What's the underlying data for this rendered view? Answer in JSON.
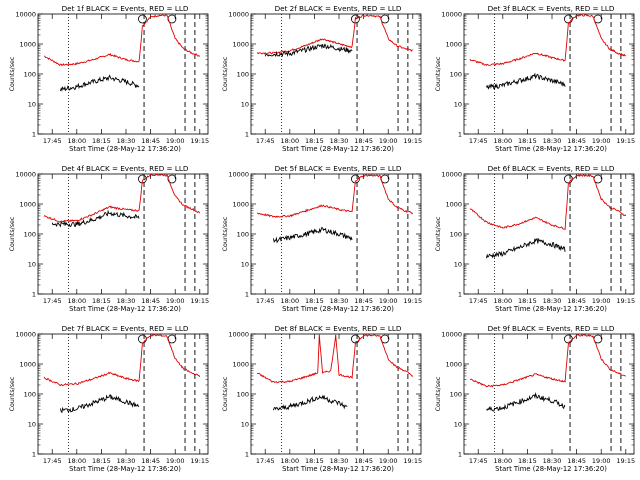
{
  "figure": {
    "xlabel": "Start Time (28-May-12 17:36:20)",
    "ylabel": "Counts/sec",
    "x_ticks": [
      "17:45",
      "18:00",
      "18:15",
      "18:30",
      "18:45",
      "19:00",
      "19:15"
    ],
    "y_ticks": [
      "1",
      "10",
      "100",
      "1000",
      "10000"
    ],
    "colors": {
      "events": "#000000",
      "lld": "#e00000"
    }
  },
  "chart_data": [
    {
      "type": "line",
      "title": "Det 1f BLACK = Events, RED = LLD",
      "xlim": [
        "17:36:20",
        "19:20"
      ],
      "ylim": [
        1,
        10000
      ],
      "y_scale": "log",
      "x_ticks": [
        "17:45",
        "18:00",
        "18:15",
        "18:30",
        "18:45",
        "19:00",
        "19:15"
      ],
      "dotted_markers": [
        "17:55"
      ],
      "dashed_markers": [
        "18:41",
        "19:06",
        "19:12"
      ],
      "circle_markers": [
        "18:40",
        "18:58"
      ],
      "series": [
        {
          "name": "LLD",
          "x": [
            "17:40",
            "17:50",
            "18:00",
            "18:10",
            "18:20",
            "18:30",
            "18:38",
            "18:40",
            "18:45",
            "18:50",
            "18:55",
            "18:58",
            "19:00",
            "19:05",
            "19:10",
            "19:15"
          ],
          "values": [
            400,
            200,
            220,
            300,
            450,
            300,
            260,
            4000,
            8000,
            9000,
            9000,
            3000,
            1500,
            700,
            500,
            400
          ]
        },
        {
          "name": "Events",
          "x": [
            "17:50",
            "18:00",
            "18:10",
            "18:20",
            "18:30",
            "18:38"
          ],
          "values": [
            30,
            38,
            55,
            75,
            55,
            40
          ]
        }
      ]
    },
    {
      "type": "line",
      "title": "Det 2f BLACK = Events, RED = LLD",
      "xlim": [
        "17:36:20",
        "19:20"
      ],
      "ylim": [
        1,
        10000
      ],
      "y_scale": "log",
      "x_ticks": [
        "17:45",
        "18:00",
        "18:15",
        "18:30",
        "18:45",
        "19:00",
        "19:15"
      ],
      "dotted_markers": [
        "17:55"
      ],
      "dashed_markers": [
        "18:41",
        "19:06",
        "19:12"
      ],
      "circle_markers": [
        "18:40",
        "18:58"
      ],
      "series": [
        {
          "name": "LLD",
          "x": [
            "17:40",
            "17:50",
            "18:00",
            "18:10",
            "18:20",
            "18:30",
            "18:38",
            "18:40",
            "18:45",
            "18:50",
            "18:55",
            "18:58",
            "19:00",
            "19:05",
            "19:10",
            "19:15"
          ],
          "values": [
            500,
            500,
            600,
            900,
            1500,
            1000,
            800,
            7000,
            9000,
            9000,
            8000,
            3000,
            1500,
            900,
            700,
            600
          ]
        },
        {
          "name": "Events",
          "x": [
            "17:45",
            "18:00",
            "18:10",
            "18:20",
            "18:30",
            "18:38"
          ],
          "values": [
            450,
            480,
            650,
            900,
            700,
            600
          ]
        }
      ]
    },
    {
      "type": "line",
      "title": "Det 3f BLACK = Events, RED = LLD",
      "xlim": [
        "17:36:20",
        "19:20"
      ],
      "ylim": [
        1,
        10000
      ],
      "y_scale": "log",
      "x_ticks": [
        "17:45",
        "18:00",
        "18:15",
        "18:30",
        "18:45",
        "19:00",
        "19:15"
      ],
      "dotted_markers": [
        "17:55"
      ],
      "dashed_markers": [
        "18:41",
        "19:06",
        "19:12"
      ],
      "circle_markers": [
        "18:40",
        "18:58"
      ],
      "series": [
        {
          "name": "LLD",
          "x": [
            "17:40",
            "17:50",
            "18:00",
            "18:10",
            "18:20",
            "18:30",
            "18:38",
            "18:40",
            "18:45",
            "18:50",
            "18:55",
            "18:58",
            "19:00",
            "19:05",
            "19:10",
            "19:15"
          ],
          "values": [
            300,
            200,
            220,
            320,
            500,
            350,
            280,
            5000,
            9000,
            9000,
            8500,
            3000,
            1500,
            700,
            500,
            400
          ]
        },
        {
          "name": "Events",
          "x": [
            "17:50",
            "18:00",
            "18:10",
            "18:20",
            "18:30",
            "18:38"
          ],
          "values": [
            35,
            42,
            60,
            85,
            60,
            45
          ]
        }
      ]
    },
    {
      "type": "line",
      "title": "Det 4f BLACK = Events, RED = LLD",
      "xlim": [
        "17:36:20",
        "19:20"
      ],
      "ylim": [
        1,
        10000
      ],
      "y_scale": "log",
      "x_ticks": [
        "17:45",
        "18:00",
        "18:15",
        "18:30",
        "18:45",
        "19:00",
        "19:15"
      ],
      "dotted_markers": [
        "17:55"
      ],
      "dashed_markers": [
        "18:41",
        "19:06",
        "19:12"
      ],
      "circle_markers": [
        "18:40",
        "18:58"
      ],
      "series": [
        {
          "name": "LLD",
          "x": [
            "17:40",
            "17:50",
            "18:00",
            "18:10",
            "18:20",
            "18:30",
            "18:38",
            "18:40",
            "18:45",
            "18:50",
            "18:55",
            "18:58",
            "19:00",
            "19:05",
            "19:10",
            "19:15"
          ],
          "values": [
            400,
            260,
            280,
            450,
            800,
            650,
            600,
            6000,
            9500,
            9500,
            9000,
            3500,
            1800,
            900,
            700,
            500
          ]
        },
        {
          "name": "Events",
          "x": [
            "17:45",
            "18:00",
            "18:10",
            "18:20",
            "18:30",
            "18:38"
          ],
          "values": [
            220,
            210,
            300,
            500,
            400,
            350
          ]
        }
      ]
    },
    {
      "type": "line",
      "title": "Det 5f BLACK = Events, RED = LLD",
      "xlim": [
        "17:36:20",
        "19:20"
      ],
      "ylim": [
        1,
        10000
      ],
      "y_scale": "log",
      "x_ticks": [
        "17:45",
        "18:00",
        "18:15",
        "18:30",
        "18:45",
        "19:00",
        "19:15"
      ],
      "dotted_markers": [
        "17:55"
      ],
      "dashed_markers": [
        "18:41",
        "19:06",
        "19:12"
      ],
      "circle_markers": [
        "18:40",
        "18:58"
      ],
      "series": [
        {
          "name": "LLD",
          "x": [
            "17:40",
            "17:50",
            "18:00",
            "18:10",
            "18:20",
            "18:30",
            "18:38",
            "18:40",
            "18:45",
            "18:50",
            "18:55",
            "18:58",
            "19:00",
            "19:05",
            "19:10",
            "19:15"
          ],
          "values": [
            500,
            380,
            400,
            600,
            900,
            650,
            550,
            6000,
            9000,
            9000,
            8500,
            3000,
            1500,
            800,
            600,
            500
          ]
        },
        {
          "name": "Events",
          "x": [
            "17:50",
            "18:00",
            "18:10",
            "18:20",
            "18:30",
            "18:38"
          ],
          "values": [
            60,
            75,
            100,
            140,
            100,
            70
          ]
        }
      ]
    },
    {
      "type": "line",
      "title": "Det 6f BLACK = Events, RED = LLD",
      "xlim": [
        "17:36:20",
        "19:20"
      ],
      "ylim": [
        1,
        10000
      ],
      "y_scale": "log",
      "x_ticks": [
        "17:45",
        "18:00",
        "18:15",
        "18:30",
        "18:45",
        "19:00",
        "19:15"
      ],
      "dotted_markers": [
        "17:55"
      ],
      "dashed_markers": [
        "18:41",
        "19:06",
        "19:12"
      ],
      "circle_markers": [
        "18:40",
        "18:58"
      ],
      "series": [
        {
          "name": "LLD",
          "x": [
            "17:40",
            "17:50",
            "18:00",
            "18:10",
            "18:20",
            "18:30",
            "18:38",
            "18:40",
            "18:45",
            "18:50",
            "18:55",
            "18:58",
            "19:00",
            "19:05",
            "19:10",
            "19:15"
          ],
          "values": [
            700,
            250,
            160,
            220,
            350,
            200,
            150,
            5000,
            9000,
            9000,
            8500,
            3000,
            1500,
            800,
            600,
            400
          ]
        },
        {
          "name": "Events",
          "x": [
            "17:50",
            "18:00",
            "18:10",
            "18:20",
            "18:30",
            "18:38"
          ],
          "values": [
            18,
            22,
            35,
            60,
            45,
            30
          ]
        }
      ]
    },
    {
      "type": "line",
      "title": "Det 7f BLACK = Events, RED = LLD",
      "xlim": [
        "17:36:20",
        "19:20"
      ],
      "ylim": [
        1,
        10000
      ],
      "y_scale": "log",
      "x_ticks": [
        "17:45",
        "18:00",
        "18:15",
        "18:30",
        "18:45",
        "19:00",
        "19:15"
      ],
      "dotted_markers": [
        "17:55"
      ],
      "dashed_markers": [
        "18:41",
        "19:06",
        "19:12"
      ],
      "circle_markers": [
        "18:40",
        "18:58"
      ],
      "series": [
        {
          "name": "LLD",
          "x": [
            "17:40",
            "17:50",
            "18:00",
            "18:10",
            "18:20",
            "18:30",
            "18:38",
            "18:40",
            "18:45",
            "18:50",
            "18:55",
            "18:58",
            "19:00",
            "19:05",
            "19:10",
            "19:15"
          ],
          "values": [
            350,
            200,
            220,
            320,
            500,
            330,
            270,
            5000,
            9000,
            9000,
            8500,
            3000,
            1500,
            700,
            500,
            400
          ]
        },
        {
          "name": "Events",
          "x": [
            "17:50",
            "18:00",
            "18:10",
            "18:20",
            "18:30",
            "18:38"
          ],
          "values": [
            28,
            32,
            50,
            80,
            55,
            38
          ]
        }
      ]
    },
    {
      "type": "line",
      "title": "Det 8f BLACK = Events, RED = LLD",
      "xlim": [
        "17:36:20",
        "19:20"
      ],
      "ylim": [
        1,
        10000
      ],
      "y_scale": "log",
      "x_ticks": [
        "17:45",
        "18:00",
        "18:15",
        "18:30",
        "18:45",
        "19:00",
        "19:15"
      ],
      "dotted_markers": [
        "17:55"
      ],
      "dashed_markers": [
        "18:41",
        "19:06",
        "19:12"
      ],
      "circle_markers": [
        "18:40",
        "18:58"
      ],
      "series": [
        {
          "name": "LLD",
          "x": [
            "17:40",
            "17:50",
            "18:00",
            "18:10",
            "18:17",
            "18:18",
            "18:20",
            "18:25",
            "18:28",
            "18:30",
            "18:38",
            "18:40",
            "18:45",
            "18:50",
            "18:55",
            "18:58",
            "19:00",
            "19:05",
            "19:10",
            "19:15"
          ],
          "values": [
            500,
            250,
            260,
            380,
            500,
            9000,
            500,
            600,
            9000,
            450,
            350,
            5000,
            9000,
            9000,
            8500,
            3000,
            1500,
            800,
            600,
            400
          ]
        },
        {
          "name": "Events",
          "x": [
            "17:50",
            "18:00",
            "18:10",
            "18:15",
            "18:20",
            "18:25",
            "18:30",
            "18:35"
          ],
          "values": [
            30,
            38,
            55,
            70,
            80,
            60,
            50,
            35
          ]
        }
      ]
    },
    {
      "type": "line",
      "title": "Det 9f BLACK = Events, RED = LLD",
      "xlim": [
        "17:36:20",
        "19:20"
      ],
      "ylim": [
        1,
        10000
      ],
      "y_scale": "log",
      "x_ticks": [
        "17:45",
        "18:00",
        "18:15",
        "18:30",
        "18:45",
        "19:00",
        "19:15"
      ],
      "dotted_markers": [
        "17:55"
      ],
      "dashed_markers": [
        "18:41",
        "19:06",
        "19:12"
      ],
      "circle_markers": [
        "18:40",
        "18:58"
      ],
      "series": [
        {
          "name": "LLD",
          "x": [
            "17:40",
            "17:50",
            "18:00",
            "18:10",
            "18:20",
            "18:30",
            "18:38",
            "18:40",
            "18:45",
            "18:50",
            "18:55",
            "18:58",
            "19:00",
            "19:05",
            "19:10",
            "19:15"
          ],
          "values": [
            320,
            180,
            200,
            300,
            450,
            320,
            260,
            5000,
            9000,
            9000,
            8500,
            3000,
            1500,
            700,
            500,
            400
          ]
        },
        {
          "name": "Events",
          "x": [
            "17:50",
            "18:00",
            "18:10",
            "18:20",
            "18:30",
            "18:38"
          ],
          "values": [
            30,
            35,
            55,
            85,
            60,
            38
          ]
        }
      ]
    }
  ]
}
